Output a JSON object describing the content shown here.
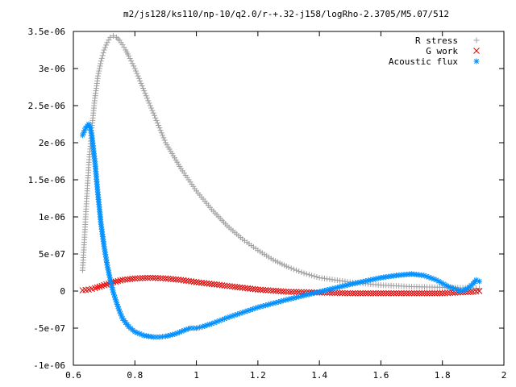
{
  "chart_data": {
    "type": "scatter",
    "title": "m2/js128/ks110/np-10/q2.0/r-+.32-j158/logRho-2.3705/M5.07/512",
    "xlabel": "",
    "ylabel": "",
    "xlim": [
      0.6,
      2.0
    ],
    "ylim": [
      -1e-06,
      3.5e-06
    ],
    "x_ticks": [
      "0.6",
      "0.8",
      "1",
      "1.2",
      "1.4",
      "1.6",
      "1.8",
      "2"
    ],
    "x_tick_values": [
      0.6,
      0.8,
      1.0,
      1.2,
      1.4,
      1.6,
      1.8,
      2.0
    ],
    "y_ticks": [
      "-1e-06",
      "-5e-07",
      "0",
      "5e-07",
      "1e-06",
      "1.5e-06",
      "2e-06",
      "2.5e-06",
      "3e-06",
      "3.5e-06"
    ],
    "y_tick_values": [
      -1e-06,
      -5e-07,
      0,
      5e-07,
      1e-06,
      1.5e-06,
      2e-06,
      2.5e-06,
      3e-06,
      3.5e-06
    ],
    "grid": false,
    "legend_position": "top-right",
    "series": [
      {
        "name": "R stress",
        "marker": "plus",
        "color": "#a0a0a0",
        "x": [
          0.63,
          0.64,
          0.65,
          0.66,
          0.67,
          0.68,
          0.69,
          0.7,
          0.71,
          0.72,
          0.73,
          0.74,
          0.75,
          0.76,
          0.77,
          0.78,
          0.8,
          0.82,
          0.85,
          0.88,
          0.9,
          0.95,
          1.0,
          1.05,
          1.1,
          1.15,
          1.2,
          1.25,
          1.3,
          1.35,
          1.4,
          1.5,
          1.6,
          1.7,
          1.8,
          1.9,
          1.92
        ],
        "y": [
          2.8e-07,
          1e-06,
          1.7e-06,
          2.2e-06,
          2.6e-06,
          2.9e-06,
          3.1e-06,
          3.25e-06,
          3.35e-06,
          3.42e-06,
          3.44e-06,
          3.42e-06,
          3.38e-06,
          3.32e-06,
          3.25e-06,
          3.17e-06,
          3e-06,
          2.8e-06,
          2.5e-06,
          2.2e-06,
          2e-06,
          1.65e-06,
          1.35e-06,
          1.1e-06,
          8.8e-07,
          7e-07,
          5.5e-07,
          4.2e-07,
          3.2e-07,
          2.4e-07,
          1.8e-07,
          1.2e-07,
          8e-08,
          6e-08,
          5e-08,
          4e-08,
          3.5e-08
        ]
      },
      {
        "name": "G work",
        "marker": "cross",
        "color": "#e00000",
        "x": [
          0.63,
          0.65,
          0.67,
          0.7,
          0.73,
          0.76,
          0.8,
          0.85,
          0.9,
          0.95,
          1.0,
          1.1,
          1.2,
          1.3,
          1.4,
          1.5,
          1.6,
          1.7,
          1.8,
          1.9,
          1.92
        ],
        "y": [
          1e-08,
          2e-08,
          4e-08,
          8e-08,
          1.2e-07,
          1.5e-07,
          1.7e-07,
          1.8e-07,
          1.7e-07,
          1.5e-07,
          1.2e-07,
          7e-08,
          2e-08,
          -1e-08,
          -2e-08,
          -3e-08,
          -3e-08,
          -3e-08,
          -3e-08,
          -1e-08,
          0.0
        ]
      },
      {
        "name": "Acoustic flux",
        "marker": "star",
        "color": "#0090ff",
        "x": [
          0.63,
          0.64,
          0.65,
          0.655,
          0.66,
          0.67,
          0.68,
          0.69,
          0.7,
          0.71,
          0.72,
          0.73,
          0.74,
          0.75,
          0.76,
          0.78,
          0.8,
          0.83,
          0.86,
          0.88,
          0.9,
          0.93,
          0.96,
          0.98,
          1.0,
          1.02,
          1.05,
          1.1,
          1.15,
          1.2,
          1.3,
          1.4,
          1.5,
          1.6,
          1.65,
          1.7,
          1.74,
          1.78,
          1.82,
          1.86,
          1.88,
          1.9,
          1.91,
          1.92
        ],
        "y": [
          2.1e-06,
          2.2e-06,
          2.25e-06,
          2.2e-06,
          2.1e-06,
          1.75e-06,
          1.3e-06,
          9e-07,
          6e-07,
          3.5e-07,
          1.5e-07,
          -2e-08,
          -1.5e-07,
          -2.7e-07,
          -3.7e-07,
          -4.8e-07,
          -5.5e-07,
          -6e-07,
          -6.2e-07,
          -6.2e-07,
          -6.1e-07,
          -5.8e-07,
          -5.3e-07,
          -5e-07,
          -5e-07,
          -4.8e-07,
          -4.4e-07,
          -3.6e-07,
          -2.9e-07,
          -2.2e-07,
          -1.1e-07,
          -1e-08,
          9e-08,
          1.8e-07,
          2.1e-07,
          2.3e-07,
          2.1e-07,
          1.5e-07,
          6e-08,
          0.0,
          3e-08,
          1e-07,
          1.5e-07,
          1.3e-07
        ]
      }
    ]
  }
}
